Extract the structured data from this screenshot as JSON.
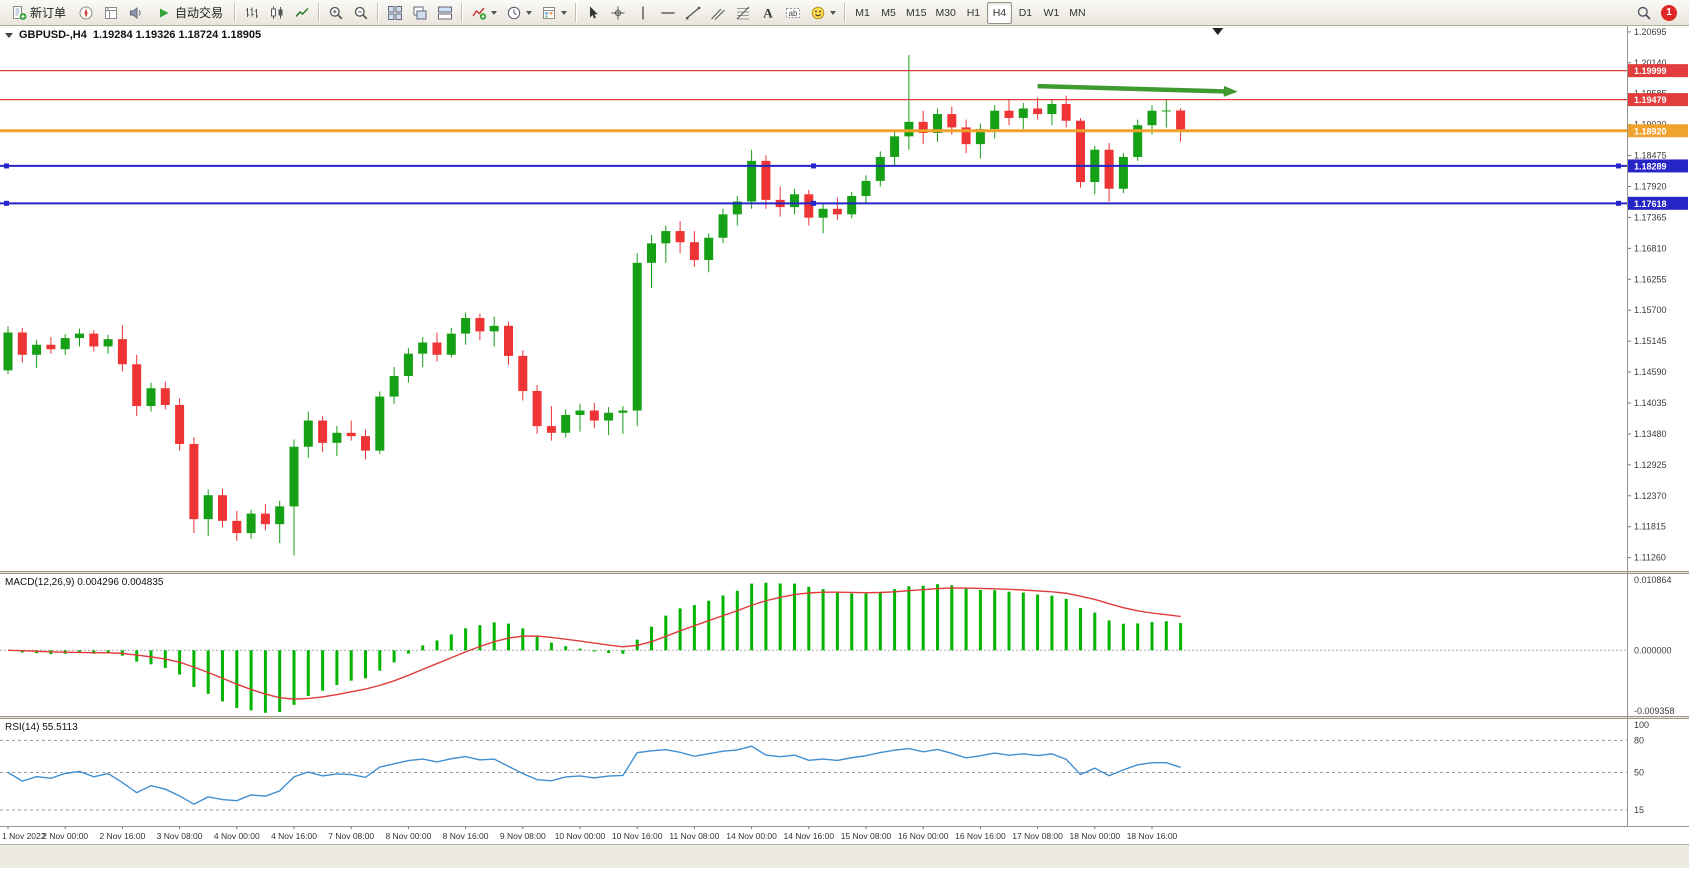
{
  "toolbar": {
    "new_order_label": "新订单",
    "autotrading_label": "自动交易",
    "timeframes": [
      "M1",
      "M5",
      "M15",
      "M30",
      "H1",
      "H4",
      "D1",
      "W1",
      "MN"
    ],
    "active_timeframe": "H4",
    "notification_count": "1"
  },
  "chart_data": {
    "type": "candlestick",
    "symbol_title": "GBPUSD-,H4",
    "ohlc_text": "1.19284 1.19326 1.18724 1.18905",
    "current": {
      "open": 1.19284,
      "high": 1.19326,
      "low": 1.18724,
      "close": 1.18905
    },
    "colors": {
      "up": "#16a016",
      "down": "#ee3434",
      "background": "#ffffff"
    },
    "price_axis": {
      "max": 1.208,
      "min": 1.1102,
      "labels": [
        "1.20695",
        "1.20140",
        "1.19585",
        "1.19030",
        "1.18475",
        "1.17920",
        "1.17365",
        "1.16810",
        "1.16255",
        "1.15700",
        "1.15145",
        "1.14590",
        "1.14035",
        "1.13480",
        "1.12925",
        "1.12370",
        "1.11815",
        "1.11260"
      ]
    },
    "time_labels": [
      "1 Nov 2022",
      "2 Nov 00:00",
      "2 Nov 16:00",
      "3 Nov 08:00",
      "4 Nov 00:00",
      "4 Nov 16:00",
      "7 Nov 08:00",
      "8 Nov 00:00",
      "8 Nov 16:00",
      "9 Nov 08:00",
      "10 Nov 00:00",
      "10 Nov 16:00",
      "11 Nov 08:00",
      "14 Nov 00:00",
      "14 Nov 16:00",
      "15 Nov 08:00",
      "16 Nov 00:00",
      "16 Nov 16:00",
      "17 Nov 08:00",
      "18 Nov 00:00",
      "18 Nov 16:00"
    ],
    "candles": [
      [
        1.1462,
        1.1541,
        1.1455,
        1.153
      ],
      [
        1.153,
        1.1538,
        1.1476,
        1.149
      ],
      [
        1.149,
        1.1517,
        1.1466,
        1.1508
      ],
      [
        1.1508,
        1.1522,
        1.1492,
        1.15
      ],
      [
        1.15,
        1.1527,
        1.149,
        1.152
      ],
      [
        1.152,
        1.1537,
        1.1505,
        1.1528
      ],
      [
        1.1528,
        1.1534,
        1.1496,
        1.1505
      ],
      [
        1.1505,
        1.1526,
        1.1492,
        1.1518
      ],
      [
        1.1518,
        1.1543,
        1.146,
        1.1473
      ],
      [
        1.1473,
        1.149,
        1.138,
        1.1398
      ],
      [
        1.1398,
        1.144,
        1.1388,
        1.143
      ],
      [
        1.143,
        1.1442,
        1.1392,
        1.14
      ],
      [
        1.14,
        1.1412,
        1.1318,
        1.133
      ],
      [
        1.133,
        1.1342,
        1.117,
        1.1195
      ],
      [
        1.1195,
        1.1248,
        1.1165,
        1.1238
      ],
      [
        1.1238,
        1.125,
        1.118,
        1.1192
      ],
      [
        1.1192,
        1.121,
        1.1156,
        1.117
      ],
      [
        1.117,
        1.1212,
        1.116,
        1.1205
      ],
      [
        1.1205,
        1.1222,
        1.1175,
        1.1186
      ],
      [
        1.1186,
        1.1228,
        1.1152,
        1.1218
      ],
      [
        1.1218,
        1.1338,
        1.113,
        1.1325
      ],
      [
        1.1325,
        1.1388,
        1.1305,
        1.1372
      ],
      [
        1.1372,
        1.138,
        1.1315,
        1.1332
      ],
      [
        1.1332,
        1.1362,
        1.1308,
        1.135
      ],
      [
        1.135,
        1.1372,
        1.1336,
        1.1344
      ],
      [
        1.1344,
        1.1356,
        1.1302,
        1.1318
      ],
      [
        1.1318,
        1.1424,
        1.1312,
        1.1415
      ],
      [
        1.1415,
        1.1468,
        1.1402,
        1.1452
      ],
      [
        1.1452,
        1.1502,
        1.144,
        1.1492
      ],
      [
        1.1492,
        1.1522,
        1.1468,
        1.1512
      ],
      [
        1.1512,
        1.153,
        1.1478,
        1.149
      ],
      [
        1.149,
        1.1538,
        1.1485,
        1.1528
      ],
      [
        1.1528,
        1.1566,
        1.1508,
        1.1556
      ],
      [
        1.1556,
        1.1564,
        1.1516,
        1.1532
      ],
      [
        1.1532,
        1.1558,
        1.1505,
        1.1542
      ],
      [
        1.1542,
        1.155,
        1.1472,
        1.1488
      ],
      [
        1.1488,
        1.1498,
        1.1408,
        1.1425
      ],
      [
        1.1425,
        1.1436,
        1.1348,
        1.1362
      ],
      [
        1.1362,
        1.1398,
        1.1336,
        1.135
      ],
      [
        1.135,
        1.1392,
        1.1342,
        1.1382
      ],
      [
        1.1382,
        1.1402,
        1.1352,
        1.139
      ],
      [
        1.139,
        1.1404,
        1.1358,
        1.1372
      ],
      [
        1.1372,
        1.1396,
        1.1346,
        1.1386
      ],
      [
        1.1386,
        1.1398,
        1.1348,
        1.139
      ],
      [
        1.139,
        1.1672,
        1.1362,
        1.1655
      ],
      [
        1.1655,
        1.1705,
        1.161,
        1.169
      ],
      [
        1.169,
        1.1722,
        1.1655,
        1.1712
      ],
      [
        1.1712,
        1.173,
        1.1672,
        1.1692
      ],
      [
        1.1692,
        1.1712,
        1.1648,
        1.166
      ],
      [
        1.166,
        1.1708,
        1.1638,
        1.17
      ],
      [
        1.17,
        1.1752,
        1.169,
        1.1742
      ],
      [
        1.1742,
        1.1775,
        1.1722,
        1.1765
      ],
      [
        1.1765,
        1.1858,
        1.1752,
        1.1838
      ],
      [
        1.1838,
        1.1848,
        1.1752,
        1.1768
      ],
      [
        1.1768,
        1.1792,
        1.1738,
        1.1755
      ],
      [
        1.1755,
        1.1788,
        1.1742,
        1.1778
      ],
      [
        1.1778,
        1.1786,
        1.1722,
        1.1736
      ],
      [
        1.1736,
        1.1762,
        1.1708,
        1.1752
      ],
      [
        1.1752,
        1.1772,
        1.1732,
        1.1742
      ],
      [
        1.1742,
        1.1782,
        1.1735,
        1.1775
      ],
      [
        1.1775,
        1.1812,
        1.1762,
        1.1802
      ],
      [
        1.1802,
        1.1855,
        1.1792,
        1.1845
      ],
      [
        1.1845,
        1.1892,
        1.1828,
        1.1882
      ],
      [
        1.1882,
        1.2028,
        1.1858,
        1.1908
      ],
      [
        1.1908,
        1.1928,
        1.1868,
        1.1888
      ],
      [
        1.1888,
        1.1932,
        1.1872,
        1.1922
      ],
      [
        1.1922,
        1.1935,
        1.1885,
        1.1898
      ],
      [
        1.1898,
        1.1912,
        1.1852,
        1.1868
      ],
      [
        1.1868,
        1.1905,
        1.1842,
        1.1895
      ],
      [
        1.1895,
        1.1938,
        1.1878,
        1.1928
      ],
      [
        1.1928,
        1.1948,
        1.1902,
        1.1915
      ],
      [
        1.1915,
        1.1942,
        1.1895,
        1.1932
      ],
      [
        1.1932,
        1.1952,
        1.1912,
        1.1922
      ],
      [
        1.1922,
        1.1948,
        1.1902,
        1.194
      ],
      [
        1.194,
        1.1955,
        1.1898,
        1.191
      ],
      [
        1.191,
        1.1915,
        1.179,
        1.18
      ],
      [
        1.18,
        1.1865,
        1.1778,
        1.1858
      ],
      [
        1.1858,
        1.187,
        1.1765,
        1.1788
      ],
      [
        1.1788,
        1.1852,
        1.178,
        1.1845
      ],
      [
        1.1845,
        1.1912,
        1.1838,
        1.1902
      ],
      [
        1.1902,
        1.1938,
        1.1885,
        1.1928
      ],
      [
        1.1928,
        1.1948,
        1.1898,
        1.19284
      ],
      [
        1.19284,
        1.19326,
        1.18724,
        1.18905
      ]
    ],
    "lines": [
      {
        "price": 1.19999,
        "color": "#e23d3d",
        "width": 1.3,
        "badge": "1.19999",
        "badge_color": "#e23d3d",
        "handles": false
      },
      {
        "price": 1.19479,
        "color": "#e23d3d",
        "width": 1.3,
        "badge": "1.19479",
        "badge_color": "#e23d3d",
        "handles": false
      },
      {
        "price": 1.1892,
        "color": "#efa22d",
        "width": 3,
        "badge": "1.18920",
        "badge_color": "#efa22d",
        "handles": false
      },
      {
        "price": 1.18289,
        "color": "#2525c8",
        "width": 2,
        "badge": "1.18289",
        "badge_color": "#2525c8",
        "handles": true
      },
      {
        "price": 1.17618,
        "color": "#2525c8",
        "width": 2,
        "badge": "1.17618",
        "badge_color": "#2525c8",
        "handles": true
      }
    ],
    "trend_arrow": {
      "from_index": 72,
      "from_price": 1.1972,
      "to_index": 86,
      "to_price": 1.1962,
      "color": "#3f9a2f"
    },
    "shift_marker_index": 84.6,
    "macd": {
      "label": "MACD(12,26,9) 0.004296 0.004835",
      "fast": 12,
      "slow": 26,
      "signal_period": 9,
      "value_main": 0.004296,
      "value_signal": 0.004835,
      "histogram_color": "#00b400",
      "signal_color": "#e03c3c",
      "axis": {
        "max": 0.010864,
        "min": -0.009358,
        "labels": [
          {
            "v": 0.010864,
            "t": "0.010864"
          },
          {
            "v": 0,
            "t": "0.000000"
          },
          {
            "v": -0.009358,
            "t": "-0.009358"
          }
        ]
      }
    },
    "rsi": {
      "label": "RSI(14) 55.5113",
      "period": 14,
      "value": 55.5113,
      "color": "#3f8fd2",
      "axis": {
        "max": 100,
        "min": 0,
        "labels": [
          {
            "v": 100,
            "t": "100"
          },
          {
            "v": 80,
            "t": "80"
          },
          {
            "v": 50,
            "t": "50"
          },
          {
            "v": 15,
            "t": "15"
          }
        ],
        "levels": [
          80,
          50,
          15
        ]
      }
    }
  }
}
